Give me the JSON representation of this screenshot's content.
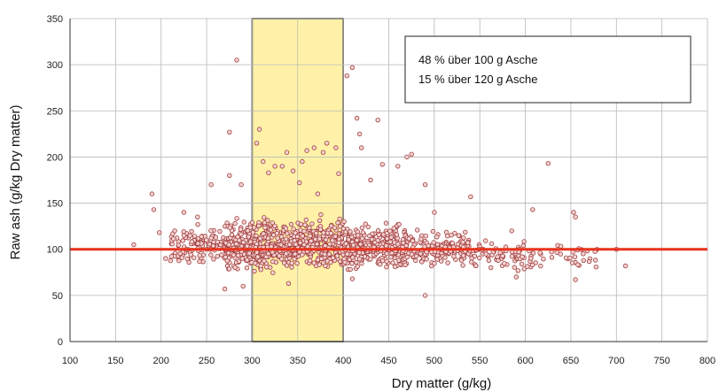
{
  "chart_data": {
    "type": "scatter",
    "title": "",
    "xlabel": "Dry matter (g/kg)",
    "ylabel": "Raw ash (g/kg Dry matter)",
    "xlim": [
      100,
      800
    ],
    "ylim": [
      0,
      350
    ],
    "xticks": [
      100,
      150,
      200,
      250,
      300,
      350,
      400,
      450,
      500,
      550,
      600,
      650,
      700,
      750,
      800
    ],
    "yticks": [
      0,
      50,
      100,
      150,
      200,
      250,
      300,
      350
    ],
    "grid": true,
    "legend": "none",
    "reference_line": {
      "y": 100,
      "color": "#e8331c"
    },
    "highlight_band": {
      "x_from": 300,
      "x_to": 400,
      "color": "#fff2a8"
    },
    "marker_color": "#a03a3a",
    "annotation_box": {
      "position": "top-right",
      "lines": [
        "48 % über 100 g Asche",
        "15 % über 120 g Asche"
      ]
    },
    "outliers": [
      [
        190,
        160
      ],
      [
        192,
        143
      ],
      [
        170,
        105
      ],
      [
        198,
        118
      ],
      [
        205,
        90
      ],
      [
        225,
        140
      ],
      [
        240,
        135
      ],
      [
        255,
        170
      ],
      [
        275,
        180
      ],
      [
        283,
        305
      ],
      [
        275,
        227
      ],
      [
        288,
        170
      ],
      [
        305,
        215
      ],
      [
        308,
        230
      ],
      [
        312,
        195
      ],
      [
        318,
        183
      ],
      [
        325,
        190
      ],
      [
        333,
        190
      ],
      [
        338,
        205
      ],
      [
        345,
        185
      ],
      [
        352,
        172
      ],
      [
        355,
        195
      ],
      [
        360,
        207
      ],
      [
        368,
        210
      ],
      [
        372,
        160
      ],
      [
        378,
        205
      ],
      [
        382,
        215
      ],
      [
        392,
        210
      ],
      [
        395,
        182
      ],
      [
        404,
        288
      ],
      [
        410,
        297
      ],
      [
        415,
        242
      ],
      [
        418,
        225
      ],
      [
        420,
        210
      ],
      [
        430,
        175
      ],
      [
        438,
        240
      ],
      [
        443,
        192
      ],
      [
        460,
        190
      ],
      [
        470,
        200
      ],
      [
        475,
        203
      ],
      [
        490,
        170
      ],
      [
        540,
        157
      ],
      [
        608,
        143
      ],
      [
        625,
        193
      ],
      [
        653,
        140
      ],
      [
        655,
        135
      ],
      [
        700,
        100
      ],
      [
        710,
        82
      ],
      [
        490,
        50
      ],
      [
        270,
        57
      ],
      [
        340,
        63
      ],
      [
        410,
        68
      ],
      [
        655,
        67
      ],
      [
        590,
        70
      ],
      [
        585,
        120
      ],
      [
        500,
        140
      ],
      [
        225,
        115
      ],
      [
        215,
        120
      ],
      [
        262,
        108
      ],
      [
        290,
        60
      ]
    ],
    "clusters": [
      {
        "x_range": [
          210,
          270
        ],
        "y_range": [
          75,
          130
        ],
        "count": 110
      },
      {
        "x_range": [
          270,
          320
        ],
        "y_range": [
          70,
          140
        ],
        "count": 280
      },
      {
        "x_range": [
          320,
          400
        ],
        "y_range": [
          70,
          140
        ],
        "count": 360
      },
      {
        "x_range": [
          400,
          470
        ],
        "y_range": [
          72,
          135
        ],
        "count": 300
      },
      {
        "x_range": [
          470,
          540
        ],
        "y_range": [
          75,
          125
        ],
        "count": 170
      },
      {
        "x_range": [
          540,
          600
        ],
        "y_range": [
          72,
          115
        ],
        "count": 70
      },
      {
        "x_range": [
          600,
          680
        ],
        "y_range": [
          72,
          110
        ],
        "count": 40
      }
    ]
  }
}
